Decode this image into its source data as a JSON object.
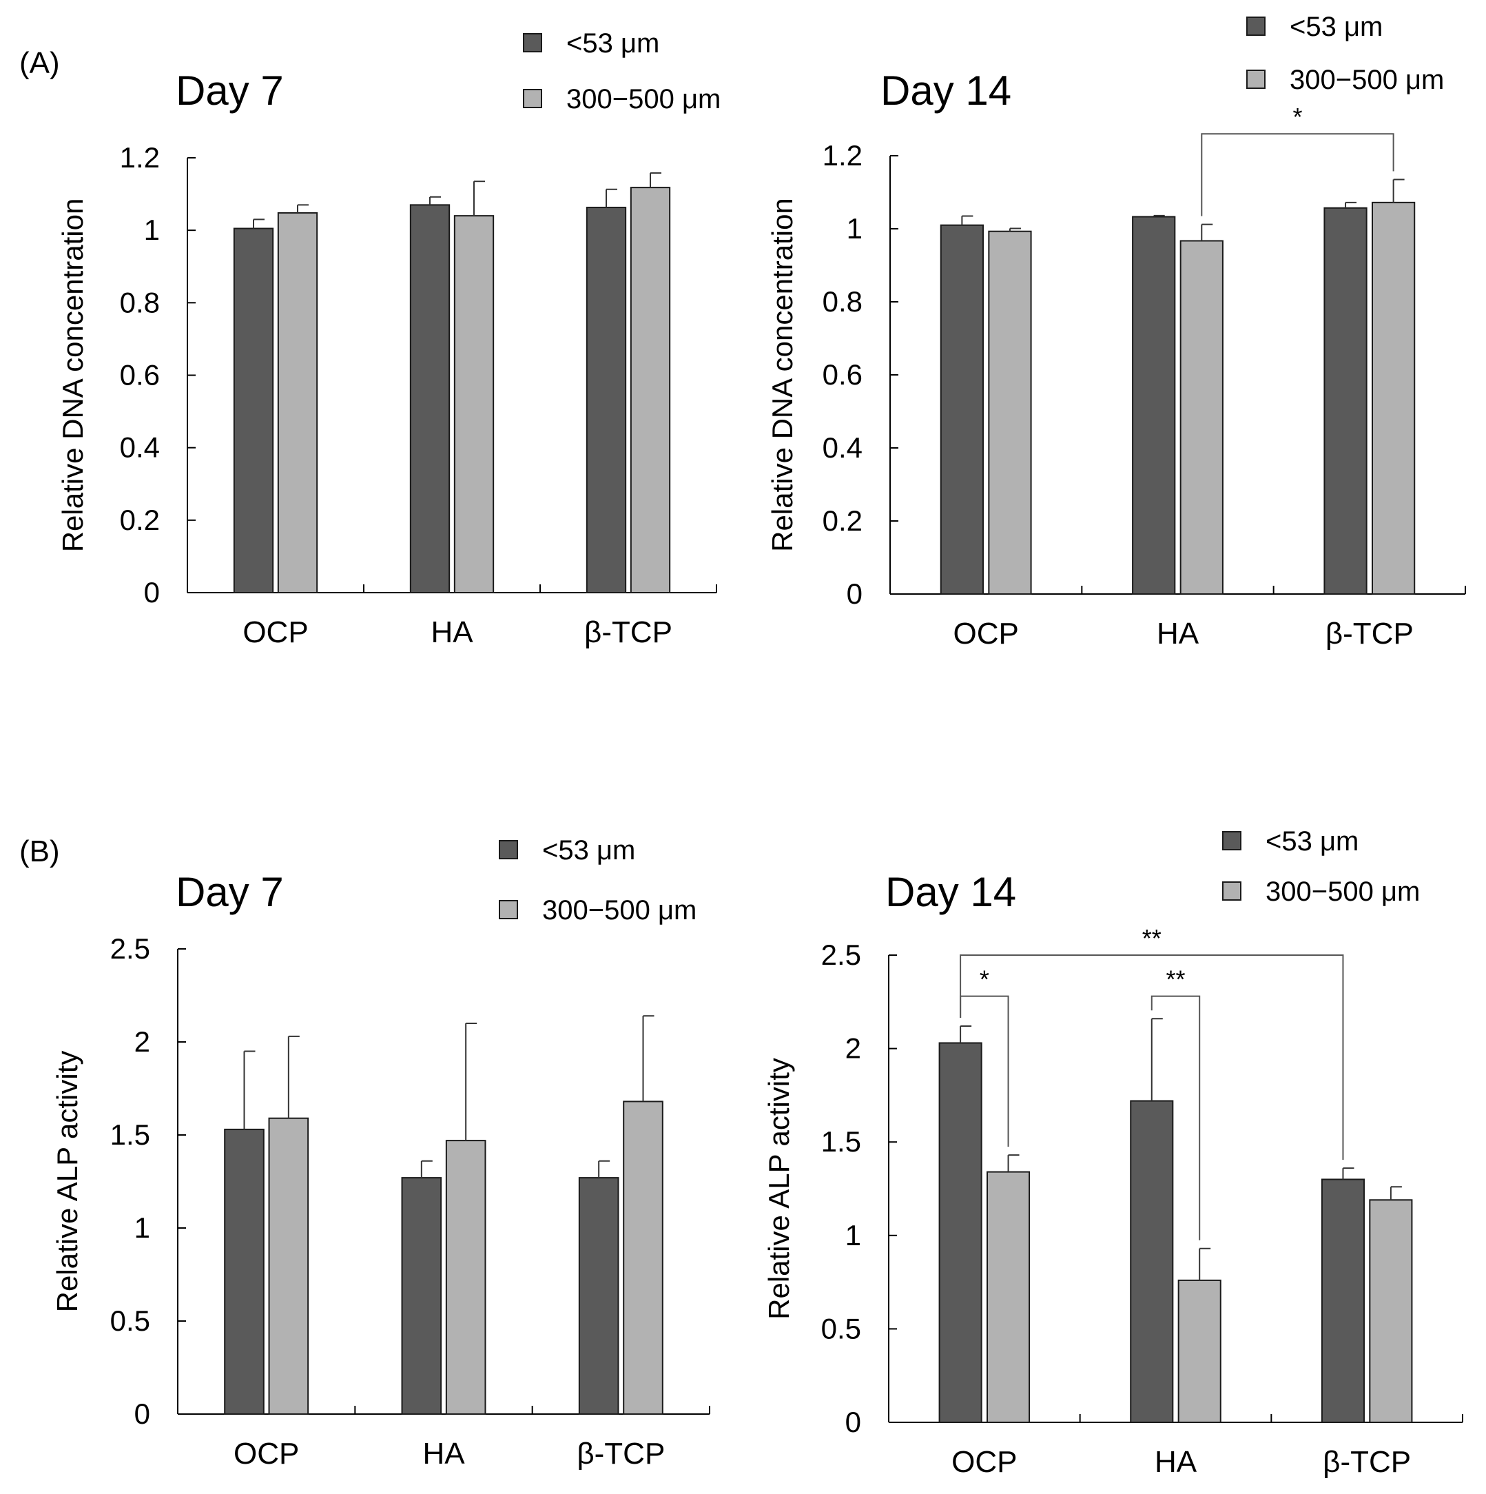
{
  "panels": [
    {
      "label": "(A)"
    },
    {
      "label": "(B)"
    }
  ],
  "colors": {
    "dark": "#5a5a5a",
    "light": "#b2b2b2",
    "edge": "#1a1a1a"
  },
  "chart_data": [
    {
      "type": "bar",
      "panel": "(A)",
      "title": "Day 7",
      "ylabel": "Relative DNA concentration",
      "xlabel": "",
      "categories": [
        "OCP",
        "HA",
        "β-TCP"
      ],
      "ylim": [
        0,
        1.2
      ],
      "yticks": [
        "0",
        "0.2",
        "0.4",
        "0.6",
        "0.8",
        "1",
        "1.2"
      ],
      "ytick_values": [
        0,
        0.2,
        0.4,
        0.6,
        0.8,
        1,
        1.2
      ],
      "legend": {
        "position": "top-right"
      },
      "series": [
        {
          "name": "<53 μm",
          "color": "#5a5a5a",
          "values": [
            1.005,
            1.07,
            1.063
          ],
          "errors": [
            0.025,
            0.022,
            0.05
          ]
        },
        {
          "name": "300−500 μm",
          "color": "#b2b2b2",
          "values": [
            1.048,
            1.04,
            1.118
          ],
          "errors": [
            0.022,
            0.095,
            0.04
          ]
        }
      ],
      "significance": []
    },
    {
      "type": "bar",
      "panel": "(A)",
      "title": "Day 14",
      "ylabel": "Relative DNA concentration",
      "xlabel": "",
      "categories": [
        "OCP",
        "HA",
        "β-TCP"
      ],
      "ylim": [
        0,
        1.2
      ],
      "yticks": [
        "0",
        "0.2",
        "0.4",
        "0.6",
        "0.8",
        "1",
        "1.2"
      ],
      "ytick_values": [
        0,
        0.2,
        0.4,
        0.6,
        0.8,
        1,
        1.2
      ],
      "legend": {
        "position": "top-right"
      },
      "series": [
        {
          "name": "<53 μm",
          "color": "#5a5a5a",
          "values": [
            1.01,
            1.033,
            1.057
          ],
          "errors": [
            0.025,
            0.003,
            0.015
          ]
        },
        {
          "name": "300−500 μm",
          "color": "#b2b2b2",
          "values": [
            0.993,
            0.967,
            1.072
          ],
          "errors": [
            0.008,
            0.045,
            0.063
          ]
        }
      ],
      "significance": [
        {
          "from": [
            1,
            1
          ],
          "to": [
            2,
            1
          ],
          "label": "*",
          "level": 1.26
        }
      ]
    },
    {
      "type": "bar",
      "panel": "(B)",
      "title": "Day 7",
      "ylabel": "Relative ALP activity",
      "xlabel": "",
      "categories": [
        "OCP",
        "HA",
        "β-TCP"
      ],
      "ylim": [
        0,
        2.5
      ],
      "yticks": [
        "0",
        "0.5",
        "1",
        "1.5",
        "2",
        "2.5"
      ],
      "ytick_values": [
        0,
        0.5,
        1,
        1.5,
        2,
        2.5
      ],
      "legend": {
        "position": "top-right"
      },
      "series": [
        {
          "name": "<53 μm",
          "color": "#5a5a5a",
          "values": [
            1.53,
            1.27,
            1.27
          ],
          "errors": [
            0.42,
            0.09,
            0.09
          ]
        },
        {
          "name": "300−500 μm",
          "color": "#b2b2b2",
          "values": [
            1.59,
            1.47,
            1.68
          ],
          "errors": [
            0.44,
            0.63,
            0.46
          ]
        }
      ],
      "significance": []
    },
    {
      "type": "bar",
      "panel": "(B)",
      "title": "Day 14",
      "ylabel": "Relative ALP activity",
      "xlabel": "",
      "categories": [
        "OCP",
        "HA",
        "β-TCP"
      ],
      "ylim": [
        0,
        2.5
      ],
      "yticks": [
        "0",
        "0.5",
        "1",
        "1.5",
        "2",
        "2.5"
      ],
      "ytick_values": [
        0,
        0.5,
        1,
        1.5,
        2,
        2.5
      ],
      "legend": {
        "position": "top-right"
      },
      "series": [
        {
          "name": "<53 μm",
          "color": "#5a5a5a",
          "values": [
            2.03,
            1.72,
            1.3
          ],
          "errors": [
            0.09,
            0.44,
            0.06
          ]
        },
        {
          "name": "300−500 μm",
          "color": "#b2b2b2",
          "values": [
            1.34,
            0.76,
            1.19
          ],
          "errors": [
            0.09,
            0.17,
            0.07
          ]
        }
      ],
      "significance": [
        {
          "from": [
            0,
            0
          ],
          "to": [
            2,
            0
          ],
          "label": "**",
          "level": 2.5
        },
        {
          "from": [
            0,
            0
          ],
          "to": [
            0,
            1
          ],
          "label": "*",
          "level": 2.28
        },
        {
          "from": [
            1,
            0
          ],
          "to": [
            1,
            1
          ],
          "label": "**",
          "level": 2.28
        }
      ]
    }
  ]
}
